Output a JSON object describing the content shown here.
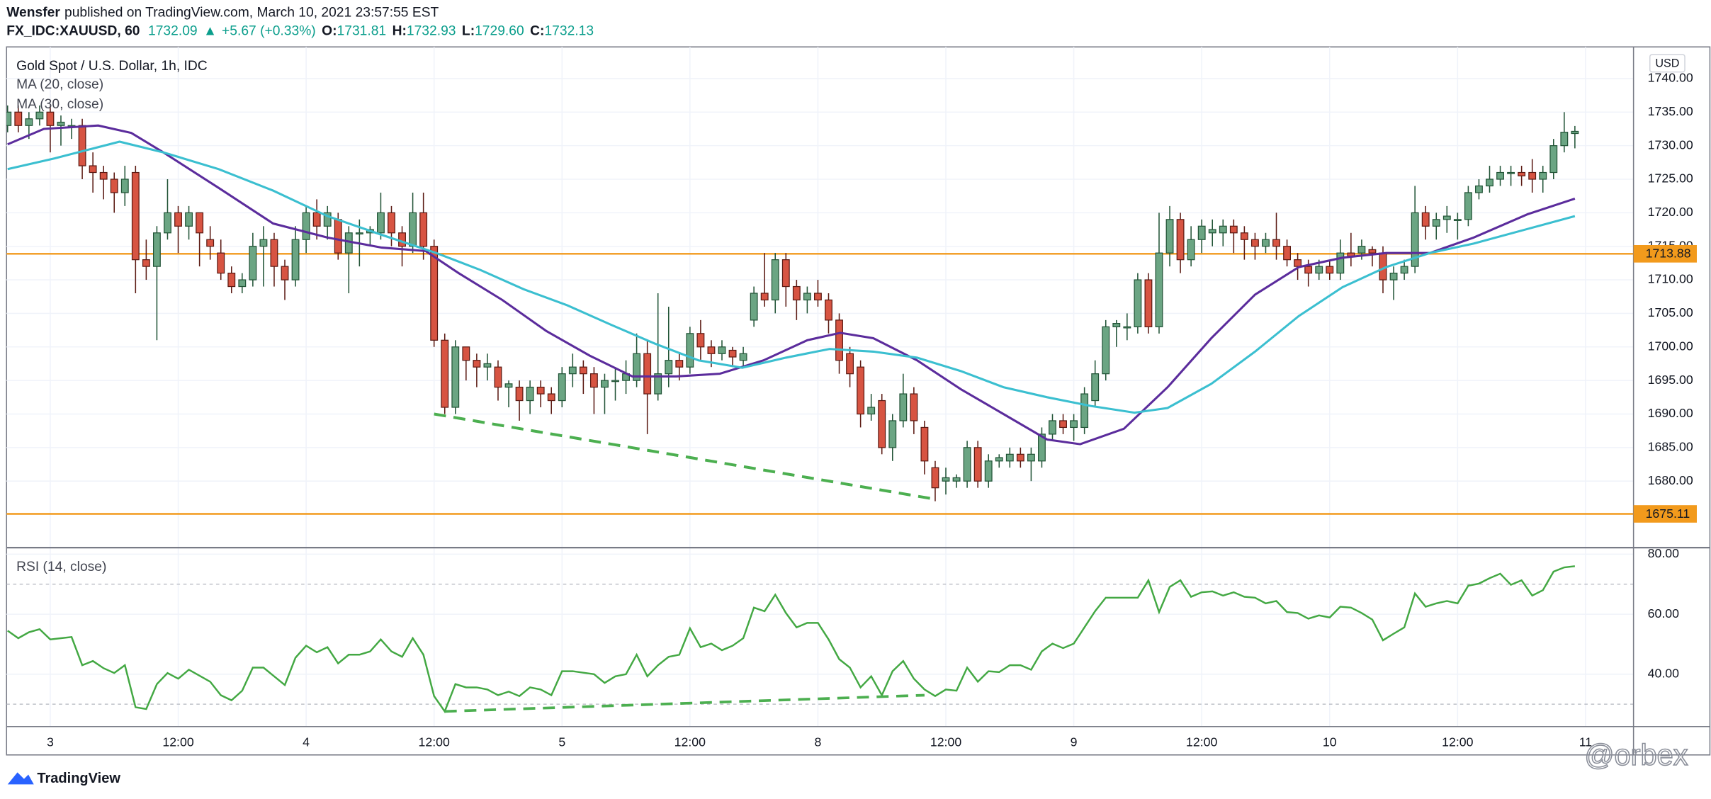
{
  "header": {
    "author": "Wensfer",
    "byline": "published on TradingView.com, March 10, 2021 23:57:55 EST",
    "symbol": "FX_IDC:XAUUSD, 60",
    "last": "1732.09",
    "arrow": "▲",
    "change": "+5.67 (+0.33%)",
    "ohlc": [
      {
        "key": "O:",
        "value": "1731.81"
      },
      {
        "key": "H:",
        "value": "1732.93"
      },
      {
        "key": "L:",
        "value": "1729.60"
      },
      {
        "key": "C:",
        "value": "1732.13"
      }
    ]
  },
  "footer": {
    "logo": "TradingView",
    "watermark": "@orbex"
  },
  "chart_data": [
    {
      "type": "candlestick",
      "title": "Gold Spot / U.S. Dollar, 1h, IDC",
      "y_axis_label": "USD",
      "up_color": "#6ba583",
      "up_border": "#225437",
      "down_color": "#d75442",
      "down_border": "#5b1a13",
      "open": [
        1733,
        1735,
        1733,
        1734,
        1735,
        1733,
        1733,
        1733,
        1727,
        1726,
        1725,
        1723,
        1726,
        1713,
        1712,
        1717,
        1720,
        1718,
        1720,
        1716,
        1714,
        1711,
        1709,
        1710,
        1715,
        1716,
        1712,
        1710,
        1716,
        1720,
        1718,
        1719,
        1714,
        1717,
        1717,
        1717,
        1720,
        1717,
        1715,
        1720,
        1715,
        1701,
        1691,
        1700,
        1698,
        1697,
        1697,
        1694,
        1694,
        1692,
        1694,
        1693,
        1692,
        1696,
        1697,
        1696,
        1694,
        1695,
        1695,
        1695,
        1699,
        1693,
        1696,
        1698,
        1697,
        1702,
        1700,
        1699,
        1699.5,
        1698,
        1704,
        1708,
        1707,
        1713,
        1709,
        1707,
        1708,
        1707,
        1704,
        1699,
        1697,
        1690,
        1692,
        1685,
        1689,
        1693,
        1688,
        1682,
        1680,
        1680,
        1680,
        1685,
        1680,
        1683,
        1683,
        1684,
        1683,
        1683,
        1687,
        1689,
        1688,
        1688,
        1692,
        1696,
        1703,
        1703,
        1703,
        1710,
        1703,
        1714,
        1719,
        1713,
        1716,
        1717,
        1717,
        1718,
        1717,
        1716,
        1715,
        1716,
        1715,
        1713,
        1712,
        1711,
        1712,
        1711,
        1714,
        1714,
        1714.5,
        1714,
        1710,
        1711,
        1712,
        1720,
        1718,
        1719,
        1719,
        1719,
        1723,
        1724,
        1725,
        1726,
        1726,
        1726,
        1725,
        1726,
        1730,
        1731.81
      ],
      "high": [
        1736,
        1736,
        1735,
        1736,
        1736,
        1734.5,
        1734,
        1734,
        1729,
        1727,
        1726,
        1727,
        1727,
        1716,
        1718,
        1725,
        1721,
        1721,
        1720,
        1718,
        1716,
        1712,
        1711,
        1717,
        1718,
        1717,
        1713,
        1718,
        1721,
        1722,
        1721,
        1720,
        1718,
        1719,
        1718,
        1723,
        1721,
        1718,
        1723,
        1723,
        1716,
        1702,
        1701,
        1700,
        1699,
        1699,
        1698,
        1695,
        1695,
        1695,
        1695,
        1694,
        1697,
        1699,
        1698,
        1697,
        1696,
        1697,
        1698,
        1702,
        1701,
        1708,
        1706,
        1699,
        1703,
        1704,
        1701,
        1701,
        1700,
        1700,
        1709,
        1714,
        1714,
        1714,
        1710,
        1709,
        1710,
        1708,
        1705,
        1700,
        1698,
        1693,
        1693,
        1690,
        1696,
        1694,
        1689,
        1683,
        1682,
        1681,
        1686,
        1686,
        1684,
        1684,
        1685,
        1685,
        1685,
        1688,
        1690,
        1690,
        1690,
        1694,
        1698,
        1704,
        1704,
        1705,
        1711,
        1711,
        1720,
        1721,
        1720,
        1718,
        1719,
        1719,
        1719,
        1719,
        1718,
        1717,
        1717,
        1720,
        1716,
        1714,
        1713,
        1713,
        1713,
        1716,
        1717,
        1716,
        1715,
        1715,
        1712,
        1713,
        1724,
        1721,
        1720,
        1721,
        1720,
        1724,
        1725,
        1727,
        1727,
        1727,
        1727,
        1728,
        1727,
        1731,
        1735,
        1732.93
      ],
      "low": [
        1732,
        1732,
        1731,
        1733,
        1729,
        1730,
        1731,
        1725,
        1723,
        1722,
        1720,
        1721,
        1708,
        1710,
        1701,
        1716,
        1714,
        1716,
        1712,
        1713,
        1710,
        1708,
        1708,
        1709,
        1709,
        1709,
        1707,
        1709,
        1714,
        1716,
        1716,
        1713,
        1708,
        1712,
        1715,
        1716,
        1715,
        1712,
        1714,
        1713,
        1700,
        1690,
        1690,
        1695,
        1694,
        1695,
        1692,
        1691,
        1689,
        1690,
        1691,
        1690,
        1691,
        1694,
        1693,
        1690,
        1690,
        1692,
        1693,
        1694,
        1687,
        1692,
        1694,
        1695,
        1696,
        1698,
        1697,
        1698,
        1697,
        1697,
        1703,
        1706,
        1705,
        1706,
        1704,
        1705,
        1706,
        1702,
        1696,
        1694,
        1688,
        1689,
        1684,
        1683,
        1688,
        1687,
        1681,
        1677,
        1678,
        1679,
        1679,
        1679,
        1679,
        1682,
        1682,
        1682,
        1680,
        1682,
        1686,
        1687,
        1686,
        1687,
        1691,
        1695,
        1700,
        1701,
        1702,
        1702,
        1702,
        1712,
        1711,
        1712,
        1714,
        1715,
        1715,
        1714,
        1713,
        1713,
        1714,
        1713,
        1712,
        1710,
        1709,
        1710,
        1710,
        1710,
        1712,
        1713,
        1712,
        1708,
        1707,
        1710,
        1711,
        1716,
        1716,
        1717,
        1716,
        1718,
        1722,
        1723,
        1724,
        1724,
        1724,
        1723,
        1723,
        1725,
        1729,
        1729.6
      ],
      "close": [
        1735,
        1733,
        1734,
        1735,
        1733,
        1733.5,
        1733,
        1727,
        1726,
        1725,
        1723,
        1725,
        1713,
        1712,
        1717,
        1720,
        1718,
        1720,
        1717,
        1715,
        1711,
        1709,
        1710,
        1715,
        1716,
        1712,
        1710,
        1716,
        1720,
        1718,
        1720,
        1714,
        1717,
        1717,
        1717.5,
        1720,
        1717,
        1715,
        1720,
        1715,
        1701,
        1691,
        1700,
        1698,
        1697,
        1697.5,
        1694,
        1694.5,
        1692,
        1694,
        1693,
        1692,
        1696,
        1697,
        1696,
        1694,
        1695,
        1695,
        1696,
        1699,
        1693,
        1696,
        1698,
        1697,
        1702,
        1700,
        1699,
        1700,
        1698.5,
        1699,
        1708,
        1707,
        1713,
        1709,
        1707,
        1708,
        1707,
        1704,
        1698,
        1696,
        1690,
        1691,
        1685,
        1689,
        1693,
        1689,
        1683,
        1679,
        1680.5,
        1680.5,
        1685,
        1680,
        1683,
        1683.5,
        1684,
        1683,
        1684,
        1687,
        1689,
        1688,
        1689,
        1693,
        1696,
        1703,
        1703.5,
        1703,
        1710,
        1703,
        1714,
        1719,
        1713,
        1716,
        1718,
        1717.5,
        1718,
        1717,
        1716,
        1715,
        1716,
        1715,
        1713,
        1712,
        1711,
        1712,
        1711,
        1714,
        1713.5,
        1715,
        1714,
        1710,
        1711,
        1712,
        1720,
        1718,
        1719,
        1719.5,
        1719,
        1723,
        1724,
        1725,
        1726,
        1726,
        1725.5,
        1725,
        1726,
        1730,
        1732,
        1732.13
      ],
      "series": [
        {
          "name": "MA (20, close)",
          "color": "#5b2c9c",
          "x": [
            0,
            3.4,
            8.5,
            11.6,
            14.6,
            19.8,
            24.9,
            30,
            35.1,
            39.2,
            42.3,
            46.4,
            50.5,
            54.6,
            58.6,
            62.7,
            66.8,
            70.9,
            75,
            78.1,
            81.2,
            85.3,
            89.4,
            93.4,
            97.5,
            100.6,
            104.7,
            108.8,
            112.9,
            117,
            121.1,
            125.2,
            129.3,
            133.4,
            137.5,
            142.6,
            147
          ],
          "values": [
            1730.2,
            1732.5,
            1733,
            1731.9,
            1729,
            1723.7,
            1718.4,
            1716.3,
            1714.8,
            1714.3,
            1711,
            1707,
            1702.4,
            1698.7,
            1695.6,
            1695.6,
            1696,
            1698,
            1701,
            1702.1,
            1701.3,
            1698,
            1693.7,
            1690,
            1686.2,
            1685.5,
            1687.8,
            1694,
            1701.3,
            1707.8,
            1711.9,
            1713.3,
            1714,
            1714,
            1716.3,
            1719.8,
            1722.1
          ]
        },
        {
          "name": "MA (30, close)",
          "color": "#3bbfd0",
          "x": [
            0,
            4.4,
            10.5,
            14.6,
            19.8,
            24.9,
            30,
            35.1,
            40.2,
            44.3,
            48.4,
            52.5,
            56.6,
            60.7,
            64.8,
            68.9,
            73,
            77.1,
            81.2,
            85.3,
            89.4,
            93.4,
            97.5,
            101.6,
            105.7,
            108.8,
            112.9,
            117,
            121.1,
            125.2,
            129.3,
            133.4,
            137.5,
            142.6,
            147
          ],
          "values": [
            1726.5,
            1728.1,
            1730.6,
            1729,
            1726.5,
            1723.3,
            1719.5,
            1716.7,
            1714,
            1711.5,
            1708.6,
            1706.2,
            1703.3,
            1700.5,
            1698,
            1696.9,
            1698.4,
            1699.7,
            1699.3,
            1698.4,
            1696.4,
            1694,
            1692.5,
            1691.2,
            1690.2,
            1690.9,
            1694.5,
            1699.3,
            1704.6,
            1708.9,
            1711.9,
            1714,
            1715.4,
            1717.6,
            1719.5
          ]
        }
      ],
      "hlines": [
        {
          "value": 1713.88,
          "color": "#f29a1c"
        },
        {
          "value": 1675.11,
          "color": "#f29a1c"
        }
      ],
      "trendline": {
        "x": [
          40,
          87
        ],
        "values": [
          1690,
          1677.3
        ],
        "color": "#4caf50"
      },
      "xlim": [
        -0.1,
        152.5
      ],
      "xticks": [
        {
          "value": 4,
          "label": "3"
        },
        {
          "value": 16,
          "label": "12:00"
        },
        {
          "value": 28,
          "label": "4"
        },
        {
          "value": 40,
          "label": "12:00"
        },
        {
          "value": 52,
          "label": "5"
        },
        {
          "value": 64,
          "label": "12:00"
        },
        {
          "value": 76,
          "label": "8"
        },
        {
          "value": 88,
          "label": "12:00"
        },
        {
          "value": 100,
          "label": "9"
        },
        {
          "value": 112,
          "label": "12:00"
        },
        {
          "value": 124,
          "label": "10"
        },
        {
          "value": 136,
          "label": "12:00"
        },
        {
          "value": 148,
          "label": "11"
        }
      ],
      "ylim": [
        1670.08,
        1744.72
      ],
      "yticks": [
        {
          "value": 1680,
          "label": "1680.00"
        },
        {
          "value": 1685,
          "label": "1685.00"
        },
        {
          "value": 1690,
          "label": "1690.00"
        },
        {
          "value": 1695,
          "label": "1695.00"
        },
        {
          "value": 1700,
          "label": "1700.00"
        },
        {
          "value": 1705,
          "label": "1705.00"
        },
        {
          "value": 1710,
          "label": "1710.00"
        },
        {
          "value": 1715,
          "label": "1715.00"
        },
        {
          "value": 1720,
          "label": "1720.00"
        },
        {
          "value": 1725,
          "label": "1725.00"
        },
        {
          "value": 1730,
          "label": "1730.00"
        },
        {
          "value": 1735,
          "label": "1735.00"
        },
        {
          "value": 1740,
          "label": "1740.00"
        }
      ],
      "grid": true
    },
    {
      "type": "line",
      "title": "RSI (14, close)",
      "color": "#43a843",
      "values": [
        54.5,
        52,
        54,
        55,
        51.6,
        52,
        52.4,
        43,
        44.4,
        42,
        40.4,
        43,
        29,
        28.4,
        36.7,
        40.4,
        38.5,
        41.5,
        39.5,
        37.5,
        33,
        31.3,
        34.5,
        42.2,
        42.2,
        39.3,
        36.4,
        45.5,
        49.5,
        47.3,
        49,
        43.6,
        46.5,
        46.5,
        47.6,
        51.6,
        47.6,
        45.8,
        52,
        46.5,
        32.7,
        27.6,
        36.7,
        35.6,
        35.6,
        34.9,
        33,
        34.2,
        32.7,
        35.6,
        34.9,
        33,
        41,
        41,
        40.5,
        40,
        37.1,
        39.3,
        40,
        46.5,
        39.3,
        43,
        45.8,
        46.5,
        55.3,
        49,
        50.2,
        48,
        49.5,
        52,
        62.2,
        61,
        66.5,
        60.4,
        55.6,
        57.1,
        57.1,
        51.6,
        45,
        42.2,
        35.6,
        39.3,
        33,
        41,
        44.4,
        38.5,
        34.9,
        32.7,
        34.9,
        34.5,
        42.2,
        37.5,
        41,
        40.7,
        43,
        43,
        41.5,
        47.6,
        50.2,
        48.7,
        50.2,
        55.6,
        61,
        65.5,
        65.5,
        65.5,
        65.5,
        71.3,
        60.7,
        69.1,
        71.3,
        65.8,
        67.3,
        67.6,
        66.2,
        67.3,
        65.8,
        65.5,
        63.6,
        64.4,
        60.7,
        60.4,
        58.5,
        59.6,
        58.9,
        62.5,
        62.2,
        60.4,
        58.2,
        51.3,
        53.5,
        55.6,
        66.9,
        62.5,
        63.6,
        64.4,
        63.6,
        69.5,
        70.2,
        72,
        73.5,
        69.8,
        71.3,
        66.2,
        68,
        74.2,
        75.6,
        76
      ],
      "levels": [
        70,
        30
      ],
      "trendline": {
        "x": [
          41,
          86
        ],
        "values": [
          27.6,
          33
        ],
        "color": "#4caf50"
      },
      "ylim": [
        22.55,
        82.18
      ],
      "yticks": [
        {
          "value": 80,
          "label": "80.00"
        },
        {
          "value": 60,
          "label": "60.00"
        },
        {
          "value": 40,
          "label": "40.00"
        }
      ],
      "grid": true
    }
  ]
}
